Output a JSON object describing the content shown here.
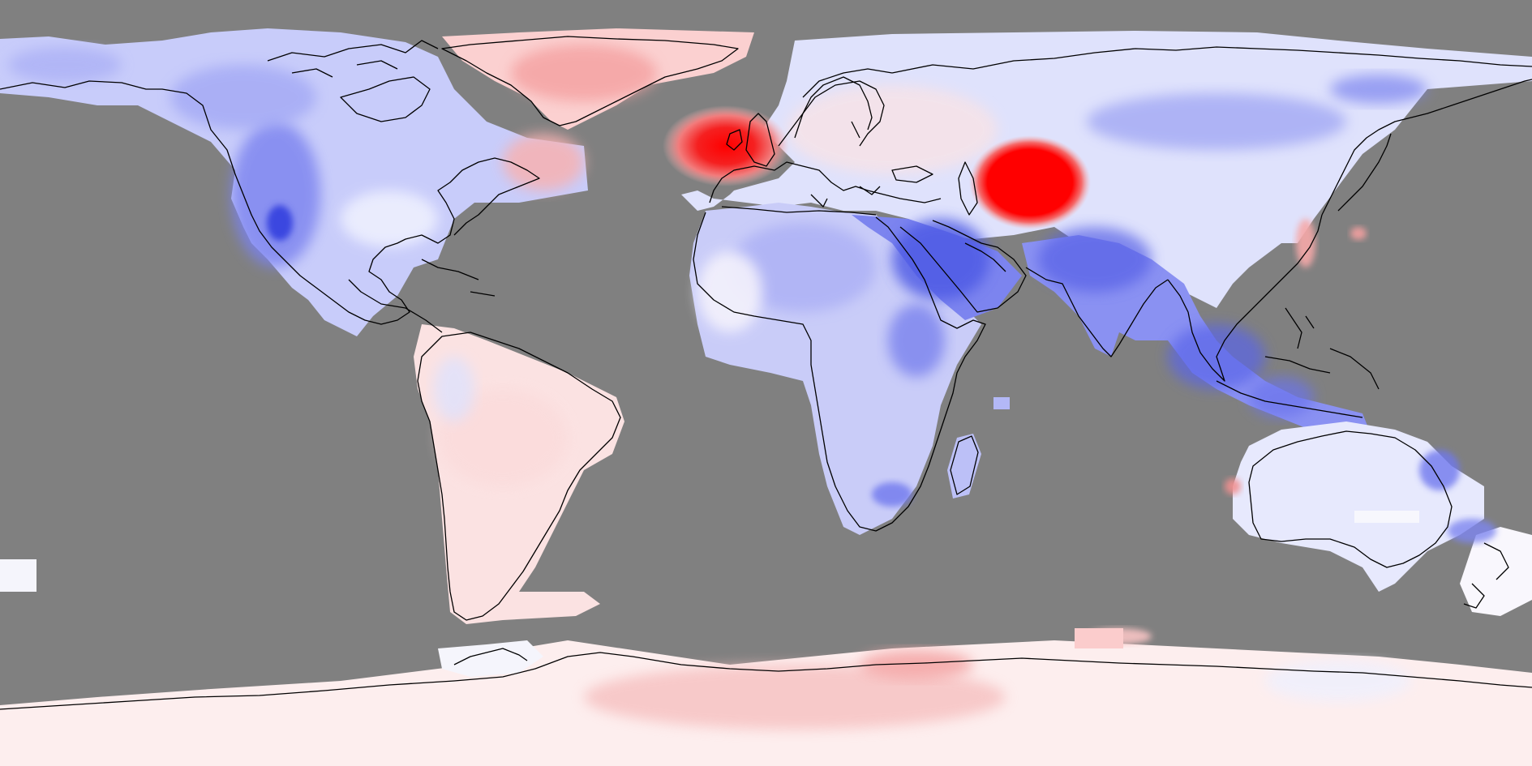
{
  "map": {
    "projection": "equirectangular",
    "ocean_color": "#808080",
    "palette": {
      "strong_negative": "#3f4fe0",
      "negative": "#7f86f0",
      "weak_negative": "#c4c8fb",
      "neutral": "#fbf6f7",
      "weak_positive": "#fcd8d8",
      "positive": "#f6a5a5",
      "strong_positive": "#ff0000"
    },
    "hotspots": [
      "british-isles",
      "central-asia"
    ],
    "coldspots": [
      "arabian-peninsula",
      "south-asia",
      "western-north-america",
      "east-africa"
    ]
  }
}
